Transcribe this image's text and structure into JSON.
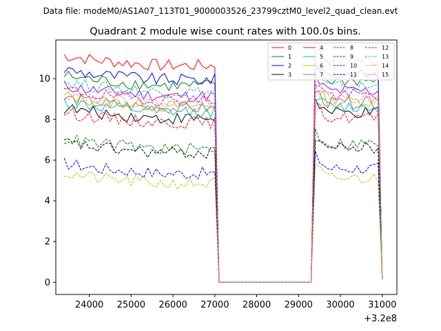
{
  "chart_data": {
    "type": "line",
    "suptitle": "Data file: modeM0/AS1A07_113T01_9000003526_23799cztM0_level2_quad_clean.evt",
    "title": "Quadrant 2 module wise count rates with 100.0s bins.",
    "xlabel": "",
    "ylabel": "",
    "x_offset_label": "+3.2e8",
    "xlim": [
      23200,
      31350
    ],
    "ylim": [
      -0.6,
      11.9
    ],
    "xticks": [
      24000,
      25000,
      26000,
      27000,
      28000,
      29000,
      30000,
      31000
    ],
    "yticks": [
      0,
      2,
      4,
      6,
      8,
      10
    ],
    "segments": [
      [
        23400,
        27000
      ],
      [
        27100,
        29300
      ],
      [
        29400,
        30900
      ]
    ],
    "legend_location": "upper-right",
    "series": [
      {
        "name": "0",
        "color": "#ff0000",
        "dash": "solid",
        "level": 10.9
      },
      {
        "name": "1",
        "color": "#008000",
        "dash": "solid",
        "level": 9.9
      },
      {
        "name": "2",
        "color": "#0000ff",
        "dash": "solid",
        "level": 10.2
      },
      {
        "name": "3",
        "color": "#000000",
        "dash": "solid",
        "level": 8.3
      },
      {
        "name": "4",
        "color": "#bf00bf",
        "dash": "solid",
        "level": 9.4
      },
      {
        "name": "5",
        "color": "#00bfbf",
        "dash": "solid",
        "level": 8.6
      },
      {
        "name": "6",
        "color": "#bfbf00",
        "dash": "solid",
        "level": 8.9
      },
      {
        "name": "7",
        "color": "#808080",
        "dash": "solid",
        "level": 8.8
      },
      {
        "name": "8",
        "color": "#ff0000",
        "dash": "dashed",
        "level": 8.1
      },
      {
        "name": "9",
        "color": "#008000",
        "dash": "dashed",
        "level": 6.8
      },
      {
        "name": "10",
        "color": "#0000ff",
        "dash": "dashed",
        "level": 5.6
      },
      {
        "name": "11",
        "color": "#000000",
        "dash": "dashed",
        "level": 6.6
      },
      {
        "name": "12",
        "color": "#bf00bf",
        "dash": "dashed",
        "level": 9.2
      },
      {
        "name": "13",
        "color": "#00bfbf",
        "dash": "dashed",
        "level": 9.6
      },
      {
        "name": "14",
        "color": "#bfbf00",
        "dash": "dashed",
        "level": 5.1
      },
      {
        "name": "15",
        "color": "#ff8080",
        "dash": "dashed",
        "level": 9.0
      }
    ]
  }
}
